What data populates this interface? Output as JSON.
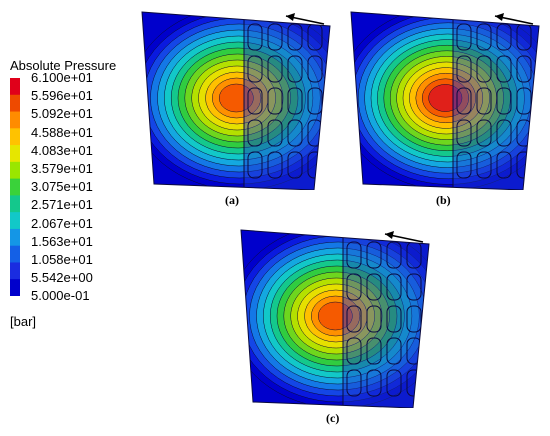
{
  "legend": {
    "title": "Absolute Pressure",
    "unit": "[bar]",
    "ticks": [
      "6.100e+01",
      "5.596e+01",
      "5.092e+01",
      "4.588e+01",
      "4.083e+01",
      "3.579e+01",
      "3.075e+01",
      "2.571e+01",
      "2.067e+01",
      "1.563e+01",
      "1.058e+01",
      "5.542e+00",
      "5.000e-01"
    ],
    "colors": [
      "#e0001a",
      "#ee4a00",
      "#ff8c00",
      "#ffc200",
      "#e6e600",
      "#9ae600",
      "#3ad23a",
      "#14c88c",
      "#12c8c8",
      "#1496e6",
      "#1460e6",
      "#1a2ce0",
      "#0000cc"
    ]
  },
  "panels": [
    {
      "label": "(a)",
      "peak": 0.92
    },
    {
      "label": "(b)",
      "peak": 1.0
    },
    {
      "label": "(c)",
      "peak": 0.96
    }
  ],
  "icons": {
    "arrow": "rotation-direction-arrow-icon"
  }
}
